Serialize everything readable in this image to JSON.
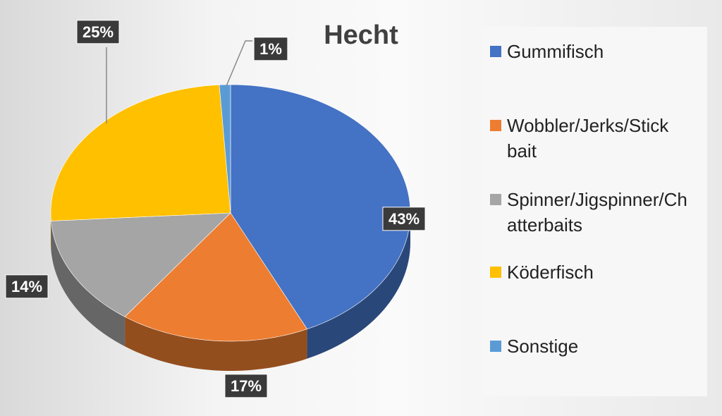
{
  "chart_data": {
    "type": "pie",
    "title": "Hecht",
    "categories": [
      "Gummifisch",
      "Wobbler/Jerks/Stick bait",
      "Spinner/Jigspinner/Chatterbaits",
      "Köderfisch",
      "Sonstige"
    ],
    "values": [
      43,
      17,
      14,
      25,
      1
    ],
    "value_labels": [
      "43%",
      "17%",
      "14%",
      "25%",
      "1%"
    ],
    "colors": [
      "#4472c4",
      "#ed7d31",
      "#a5a5a5",
      "#ffc000",
      "#5b9bd5"
    ],
    "legend": "right"
  }
}
